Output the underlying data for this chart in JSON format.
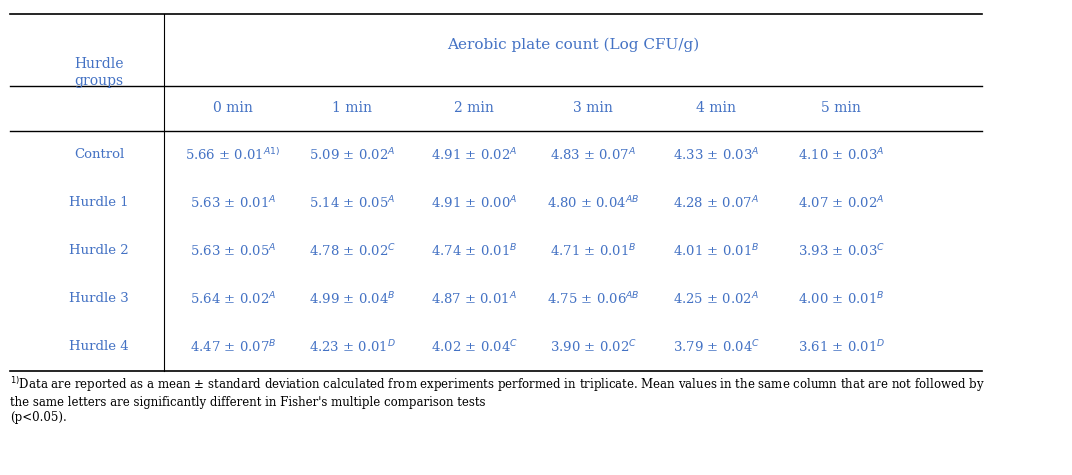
{
  "title": "Aerobic plate count (Log CFU/g)",
  "col_header_row1": "Hurdle\ngroups",
  "col_headers": [
    "0 min",
    "1 min",
    "2 min",
    "3 min",
    "4 min",
    "5 min"
  ],
  "row_labels": [
    "Control",
    "Hurdle 1",
    "Hurdle 2",
    "Hurdle 3",
    "Hurdle 4"
  ],
  "cell_data": [
    [
      "5.66 ± 0.01$^{A1)}$",
      "5.09 ± 0.02$^{A}$",
      "4.91 ± 0.02$^{A}$",
      "4.83 ± 0.07$^{A}$",
      "4.33 ± 0.03$^{A}$",
      "4.10 ± 0.03$^{A}$"
    ],
    [
      "5.63 ± 0.01$^{A}$",
      "5.14 ± 0.05$^{A}$",
      "4.91 ± 0.00$^{A}$",
      "4.80 ± 0.04$^{AB}$",
      "4.28 ± 0.07$^{A}$",
      "4.07 ± 0.02$^{A}$"
    ],
    [
      "5.63 ± 0.05$^{A}$",
      "4.78 ± 0.02$^{C}$",
      "4.74 ± 0.01$^{B}$",
      "4.71 ± 0.01$^{B}$",
      "4.01 ± 0.01$^{B}$",
      "3.93 ± 0.03$^{C}$"
    ],
    [
      "5.64 ± 0.02$^{A}$",
      "4.99 ± 0.04$^{B}$",
      "4.87 ± 0.01$^{A}$",
      "4.75 ± 0.06$^{AB}$",
      "4.25 ± 0.02$^{A}$",
      "4.00 ± 0.01$^{B}$"
    ],
    [
      "4.47 ± 0.07$^{B}$",
      "4.23 ± 0.01$^{D}$",
      "4.02 ± 0.04$^{C}$",
      "3.90 ± 0.02$^{C}$",
      "3.79 ± 0.04$^{C}$",
      "3.61 ± 0.01$^{D}$"
    ]
  ],
  "footnote": "$^{1)}$Data are reported as a mean ± standard deviation calculated from experiments performed in triplicate. Mean values in the same column that are not followed by the same letters are significantly different in Fisher's multiple comparison tests (p<0.05).",
  "text_color": "#4472c4",
  "bg_color": "#ffffff",
  "font_size": 9.5,
  "header_font_size": 10,
  "title_font_size": 11
}
